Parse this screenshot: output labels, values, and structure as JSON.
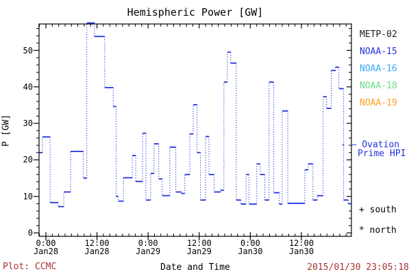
{
  "colors": {
    "curve": "#2233dd",
    "metp02": "#1a1a1a",
    "noaa15": "#2233dd",
    "noaa16": "#33aaee",
    "noaa18": "#66dd88",
    "noaa19": "#ffa022",
    "annotation_red": "#aa3333",
    "axis": "#000000"
  },
  "legend": {
    "satellites": [
      {
        "label": "METP-02",
        "color": "#1a1a1a"
      },
      {
        "label": "NOAA-15",
        "color": "#2233dd"
      },
      {
        "label": "NOAA-16",
        "color": "#33aaee"
      },
      {
        "label": "NOAA-18",
        "color": "#66dd88"
      },
      {
        "label": "NOAA-19",
        "color": "#ffa022"
      }
    ],
    "ovation_line1": "- — Ovation",
    "ovation_line2": "Prime HPI",
    "south": "+ south",
    "north": "* north"
  },
  "footer": {
    "credit": "Plot: CCMC",
    "timestamp": "2015/01/30 23:05:18"
  },
  "chart_data": {
    "type": "line",
    "subtype": "step-post, dotted vertical connectors",
    "title": "Hemispheric Power [GW]",
    "xlabel": "Date and Time",
    "ylabel": "P [GW]",
    "ylim": [
      0,
      58.3
    ],
    "y_major_ticks": [
      0,
      10,
      20,
      30,
      40,
      50
    ],
    "y_minor_step": 2,
    "x_minor_step_hours": 1.5,
    "grid": false,
    "legend_position": "right",
    "x_ticks": [
      {
        "t": 0,
        "time": "0:00",
        "date": "Jan28"
      },
      {
        "t": 12,
        "time": "12:00",
        "date": "Jan28"
      },
      {
        "t": 24,
        "time": "0:00",
        "date": "Jan29"
      },
      {
        "t": 36,
        "time": "12:00",
        "date": "Jan29"
      },
      {
        "t": 48,
        "time": "0:00",
        "date": "Jan30"
      },
      {
        "t": 60,
        "time": "12:00",
        "date": "Jan30"
      }
    ],
    "t_unit": "hours from Jan28 0:00",
    "t_range": [
      -1.6,
      71.7
    ],
    "series": [
      {
        "name": "Ovation Prime HPI",
        "color": "#2233dd",
        "t_end": 71.7,
        "steps": [
          [
            -1.9,
            22.0
          ],
          [
            -0.8,
            26.3
          ],
          [
            1.0,
            8.3
          ],
          [
            2.9,
            7.2
          ],
          [
            4.2,
            11.2
          ],
          [
            5.8,
            22.3
          ],
          [
            8.8,
            15.0
          ],
          [
            9.6,
            57.5
          ],
          [
            11.4,
            53.8
          ],
          [
            13.8,
            39.8
          ],
          [
            15.8,
            34.6
          ],
          [
            16.5,
            10.0
          ],
          [
            17.0,
            8.7
          ],
          [
            18.2,
            15.1
          ],
          [
            20.3,
            21.2
          ],
          [
            21.1,
            14.1
          ],
          [
            22.7,
            27.3
          ],
          [
            23.5,
            9.0
          ],
          [
            24.6,
            16.3
          ],
          [
            25.4,
            24.4
          ],
          [
            26.5,
            14.8
          ],
          [
            27.3,
            10.2
          ],
          [
            29.1,
            23.5
          ],
          [
            30.5,
            11.2
          ],
          [
            31.8,
            10.8
          ],
          [
            32.6,
            16.0
          ],
          [
            33.8,
            27.1
          ],
          [
            34.6,
            35.1
          ],
          [
            35.5,
            22.0
          ],
          [
            36.3,
            9.0
          ],
          [
            37.5,
            26.4
          ],
          [
            38.3,
            16.0
          ],
          [
            39.5,
            11.2
          ],
          [
            41.0,
            11.7
          ],
          [
            41.8,
            41.3
          ],
          [
            42.6,
            49.5
          ],
          [
            43.4,
            46.5
          ],
          [
            44.7,
            9.0
          ],
          [
            45.8,
            7.9
          ],
          [
            47.0,
            16.0
          ],
          [
            47.7,
            7.9
          ],
          [
            49.5,
            18.9
          ],
          [
            50.3,
            16.0
          ],
          [
            51.4,
            9.0
          ],
          [
            52.4,
            41.3
          ],
          [
            53.5,
            11.0
          ],
          [
            54.8,
            7.9
          ],
          [
            55.5,
            33.4
          ],
          [
            56.8,
            8.1
          ],
          [
            60.8,
            17.3
          ],
          [
            61.6,
            18.9
          ],
          [
            62.7,
            9.0
          ],
          [
            63.7,
            10.2
          ],
          [
            65.1,
            37.3
          ],
          [
            65.9,
            34.1
          ],
          [
            67.0,
            44.5
          ],
          [
            68.0,
            45.4
          ],
          [
            68.8,
            39.5
          ],
          [
            69.9,
            9.0
          ],
          [
            71.0,
            8.0
          ]
        ]
      }
    ]
  }
}
